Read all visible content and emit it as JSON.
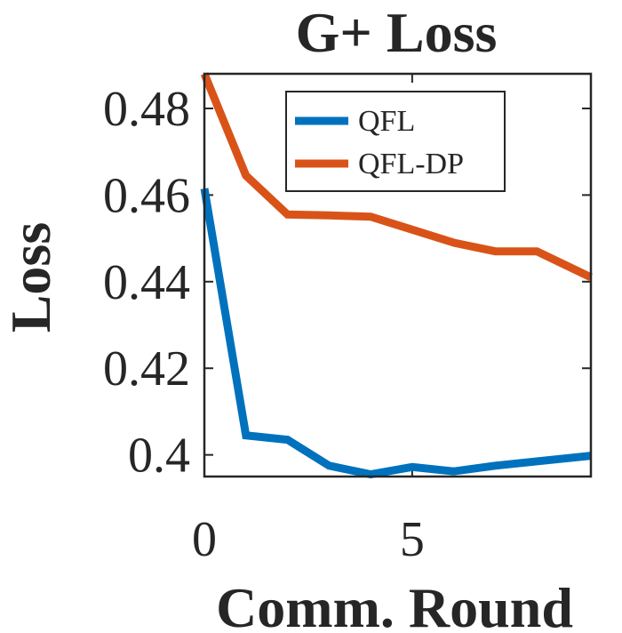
{
  "chart_data": {
    "type": "line",
    "title": "G+ Loss",
    "xlabel": "Comm. Round",
    "ylabel": "Loss",
    "xlim": [
      0,
      9.3
    ],
    "ylim": [
      0.395,
      0.488
    ],
    "xticks": [
      0,
      5
    ],
    "xtick_labels": [
      "0",
      "5"
    ],
    "yticks": [
      0.4,
      0.42,
      0.44,
      0.46,
      0.48
    ],
    "ytick_labels": [
      "0.4",
      "0.42",
      "0.44",
      "0.46",
      "0.48"
    ],
    "grid": false,
    "legend_position": "top-right",
    "x": [
      0,
      1,
      2,
      3,
      4,
      5,
      6,
      7,
      8,
      9.3
    ],
    "series": [
      {
        "name": "QFL",
        "color": "#0072BD",
        "values": [
          0.4615,
          0.4045,
          0.4035,
          0.3975,
          0.3955,
          0.3972,
          0.3962,
          0.3975,
          0.3985,
          0.3998
        ]
      },
      {
        "name": "QFL-DP",
        "color": "#D95319",
        "values": [
          0.488,
          0.4645,
          0.4555,
          0.4553,
          0.455,
          0.452,
          0.449,
          0.447,
          0.447,
          0.441
        ]
      }
    ]
  }
}
